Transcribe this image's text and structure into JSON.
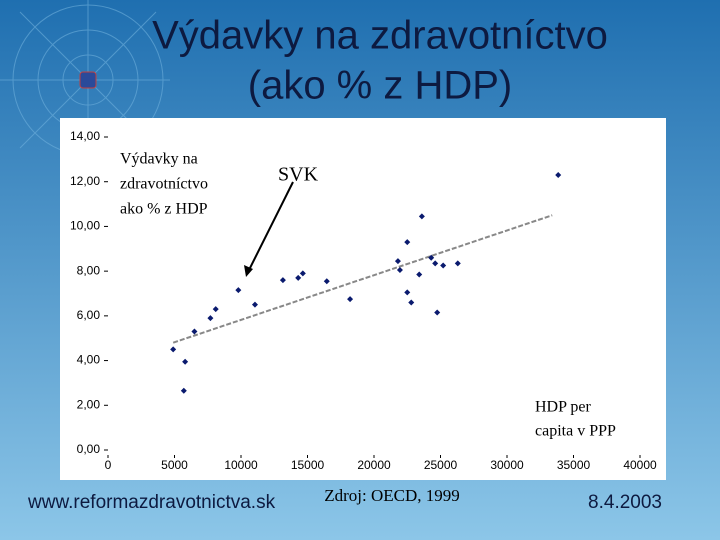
{
  "chart_data": {
    "type": "scatter",
    "title": [
      "Výdavky na zdravotníctvo",
      "(ako % z HDP)"
    ],
    "color": "#0a1a6e",
    "x": [
      4900,
      5800,
      5700,
      6500,
      7700,
      8100,
      9800,
      11050,
      13150,
      14300,
      14650,
      16450,
      18200,
      21800,
      21950,
      22500,
      22500,
      22800,
      23400,
      23600,
      24300,
      24600,
      25200,
      24750,
      26300,
      33850
    ],
    "y": [
      4.5,
      3.95,
      2.65,
      5.3,
      5.9,
      6.3,
      7.15,
      6.5,
      7.6,
      7.7,
      7.9,
      7.55,
      6.75,
      8.45,
      8.05,
      9.3,
      7.05,
      6.6,
      7.85,
      10.45,
      8.6,
      8.35,
      8.25,
      6.15,
      8.35,
      12.3
    ],
    "trendline": {
      "x": [
        4900,
        33400
      ],
      "y": [
        4.8,
        10.5
      ]
    },
    "xlim": [
      0,
      40000
    ],
    "ylim": [
      0,
      14
    ],
    "xticks": [
      0,
      5000,
      10000,
      15000,
      20000,
      25000,
      30000,
      35000,
      40000
    ],
    "yticks": [
      {
        "value": 0,
        "label": "0,00"
      },
      {
        "value": 2,
        "label": "2,00"
      },
      {
        "value": 4,
        "label": "4,00"
      },
      {
        "value": 6,
        "label": "6,00"
      },
      {
        "value": 8,
        "label": "8,00"
      },
      {
        "value": 10,
        "label": "10,00"
      },
      {
        "value": 12,
        "label": "12,00"
      },
      {
        "value": 14,
        "label": "14,00"
      }
    ],
    "y_label": [
      "Výdavky na",
      "zdravotníctvo",
      "ako % z HDP"
    ],
    "x_label": [
      "HDP per",
      "capita v PPP"
    ],
    "annotation": "SVK"
  },
  "footer": {
    "left": "www.reformazdravotnictva.sk",
    "center": "Zdroj: OECD, 1999",
    "right": "8.4.2003"
  }
}
